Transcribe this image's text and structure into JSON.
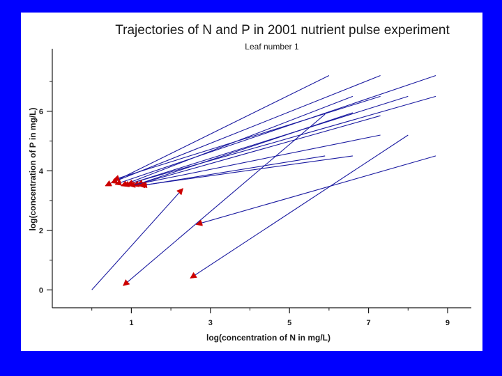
{
  "chart_data": {
    "type": "line",
    "title": "Trajectories of N and P in 2001 nutrient pulse experiment",
    "subtitle": "Leaf number 1",
    "xlabel": "log(concentration of N in mg/L)",
    "ylabel": "log(concentration of P in mg/L)",
    "xlim": [
      -1.0,
      9.6
    ],
    "ylim": [
      -0.6,
      8.1
    ],
    "x_ticks": [
      1,
      3,
      5,
      7,
      9
    ],
    "x_minor_ticks": [
      0,
      2,
      4,
      6,
      8
    ],
    "y_ticks": [
      0,
      2,
      4,
      6
    ],
    "y_minor_ticks": [
      1,
      3,
      5,
      7
    ],
    "grid": false,
    "line_color": "#1a1aa0",
    "arrow_color": "#cc0000",
    "series": [
      {
        "x": [
          6.0,
          0.35
        ],
        "y": [
          7.2,
          3.5
        ]
      },
      {
        "x": [
          7.3,
          0.5
        ],
        "y": [
          7.2,
          3.6
        ]
      },
      {
        "x": [
          8.7,
          0.6
        ],
        "y": [
          7.2,
          3.55
        ]
      },
      {
        "x": [
          6.6,
          0.75
        ],
        "y": [
          6.5,
          3.5
        ]
      },
      {
        "x": [
          7.3,
          0.55
        ],
        "y": [
          6.5,
          3.7
        ]
      },
      {
        "x": [
          8.0,
          0.8
        ],
        "y": [
          6.5,
          3.5
        ]
      },
      {
        "x": [
          8.7,
          0.9
        ],
        "y": [
          6.5,
          3.55
        ]
      },
      {
        "x": [
          6.6,
          1.05
        ],
        "y": [
          5.95,
          3.5
        ]
      },
      {
        "x": [
          7.3,
          1.15
        ],
        "y": [
          5.85,
          3.55
        ]
      },
      {
        "x": [
          7.3,
          0.95
        ],
        "y": [
          5.2,
          3.5
        ]
      },
      {
        "x": [
          6.6,
          1.2
        ],
        "y": [
          4.5,
          3.5
        ]
      },
      {
        "x": [
          5.9,
          1.25
        ],
        "y": [
          4.5,
          3.5
        ]
      },
      {
        "x": [
          0.0,
          2.3
        ],
        "y": [
          0.0,
          3.4
        ]
      },
      {
        "x": [
          5.9,
          0.8
        ],
        "y": [
          5.9,
          0.15
        ]
      },
      {
        "x": [
          8.0,
          2.5
        ],
        "y": [
          5.2,
          0.4
        ]
      },
      {
        "x": [
          8.7,
          2.65
        ],
        "y": [
          4.5,
          2.2
        ]
      }
    ]
  }
}
